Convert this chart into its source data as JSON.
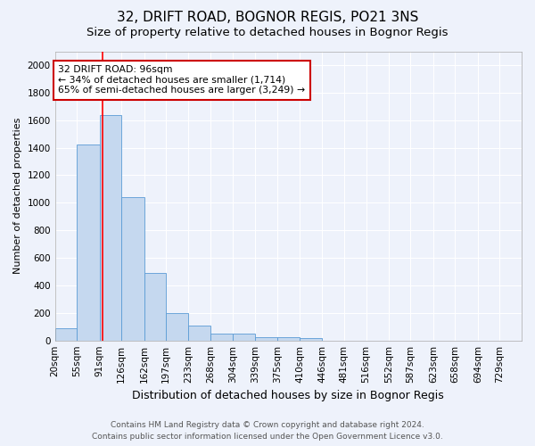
{
  "title": "32, DRIFT ROAD, BOGNOR REGIS, PO21 3NS",
  "subtitle": "Size of property relative to detached houses in Bognor Regis",
  "xlabel": "Distribution of detached houses by size in Bognor Regis",
  "ylabel": "Number of detached properties",
  "bin_labels": [
    "20sqm",
    "55sqm",
    "91sqm",
    "126sqm",
    "162sqm",
    "197sqm",
    "233sqm",
    "268sqm",
    "304sqm",
    "339sqm",
    "375sqm",
    "410sqm",
    "446sqm",
    "481sqm",
    "516sqm",
    "552sqm",
    "587sqm",
    "623sqm",
    "658sqm",
    "694sqm",
    "729sqm"
  ],
  "bin_edges": [
    20,
    55,
    91,
    126,
    162,
    197,
    233,
    268,
    304,
    339,
    375,
    410,
    446,
    481,
    516,
    552,
    587,
    623,
    658,
    694,
    729
  ],
  "bar_heights": [
    90,
    1420,
    1640,
    1040,
    490,
    200,
    110,
    50,
    50,
    25,
    25,
    20,
    0,
    0,
    0,
    0,
    0,
    0,
    0,
    0,
    0
  ],
  "bar_color": "#c5d8ef",
  "bar_edge_color": "#5b9bd5",
  "red_line_x": 96,
  "ylim": [
    0,
    2100
  ],
  "yticks": [
    0,
    200,
    400,
    600,
    800,
    1000,
    1200,
    1400,
    1600,
    1800,
    2000
  ],
  "annotation_text": "32 DRIFT ROAD: 96sqm\n← 34% of detached houses are smaller (1,714)\n65% of semi-detached houses are larger (3,249) →",
  "annotation_box_color": "#ffffff",
  "annotation_box_edgecolor": "#cc0000",
  "footer_line1": "Contains HM Land Registry data © Crown copyright and database right 2024.",
  "footer_line2": "Contains public sector information licensed under the Open Government Licence v3.0.",
  "background_color": "#eef2fb",
  "grid_color": "#ffffff",
  "title_fontsize": 11,
  "subtitle_fontsize": 9.5,
  "xlabel_fontsize": 9,
  "ylabel_fontsize": 8,
  "tick_fontsize": 7.5,
  "footer_fontsize": 6.5
}
